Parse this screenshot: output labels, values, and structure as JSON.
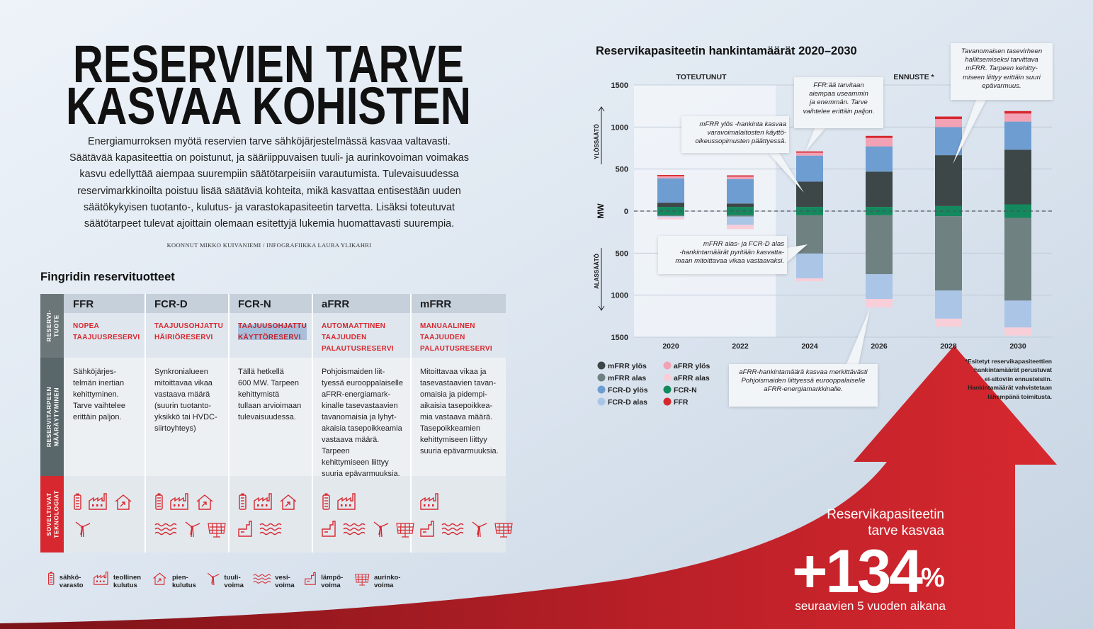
{
  "header": {
    "title": [
      "RESERVIEN TARVE",
      "KASVAA KOHISTEN"
    ],
    "intro": "Energiamurroksen myötä reservien tarve sähköjärjestelmässä kasvaa valtavasti.\nSäätävää kapasiteettia on poistunut, ja sääriippuvaisen tuuli- ja aurinkovoiman voimakas\nkasvu edellyttää aiempaa suurempiin säätötarpeisiin varautumista. Tulevaisuudessa\nreservimarkkinoilta poistuu lisää säätäviä kohteita, mikä kasvattaa entisestään uuden\nsäätökykyisen tuotanto-, kulutus- ja varastokapasiteetin tarvetta. Lisäksi toteutuvat\nsäätötarpeet tulevat ajoittain olemaan esitettyjä lukemia huomattavasti suurempia.",
    "byline": "KOONNUT MIKKO KUIVANIEMI / INFOGRAFIIKKA LAURA YLIKAHRI"
  },
  "table": {
    "title": "Fingridin reservituotteet",
    "row_labels": [
      "RESERVI-\nTUOTE",
      "RESERVITARPEEN\nMÄÄRÄYTYMINEN",
      "SOVELTUVAT\nTEKNOLOGIAT"
    ],
    "columns": [
      {
        "name": "FFR",
        "subtitle": "NOPEA\nTAAJUUSRESERVI",
        "description": "Sähköjärjes-\ntelmän inertian\nkehittyminen.\nTarve vaihtelee\nerittäin paljon."
      },
      {
        "name": "FCR-D",
        "subtitle": "TAAJUUSOHJATTU\nHÄIRIÖRESERVI",
        "description": "Synkronialueen\nmitoittavaa vikaa\nvastaava määrä\n(suurin tuotanto-\nyksikkö tai HVDC-\nsiirtoyhteys)"
      },
      {
        "name": "FCR-N",
        "subtitle": "TAAJUUSOHJATTU\nKÄYTTÖRESERVI",
        "description": "Tällä hetkellä\n600 MW. Tarpeen\nkehittymistä\ntullaan arvioimaan\ntulevaisuudessa."
      },
      {
        "name": "aFRR",
        "subtitle": "AUTOMAATTINEN\nTAAJUUDEN\nPALAUTUSRESERVI",
        "description": "Pohjoismaiden liit-\ntyessä eurooppalaiselle\naFRR-energiamark-\nkinalle tasevastaavien\ntavanomaisia ja lyhyt-\nakaisia tasepoikkeamia\nvastaava määrä. Tarpeen\nkehittymiseen liittyy\nsuuria epävarmuuksia."
      },
      {
        "name": "mFRR",
        "subtitle": "MANUAALINEN\nTAAJUUDEN\nPALAUTUSRESERVI",
        "description": "Mitoittavaa vikaa ja\ntasevastaavien tavan-\nomaisia ja pidempi-\naikaisia tasepoikkea-\nmia vastaava määrä.\nTasepoikkeamien\nkehittymiseen liittyy\nsuuria epävarmuuksia."
      }
    ]
  },
  "technology_legend": [
    [
      "sähkö-",
      "varasto"
    ],
    [
      "teollinen",
      "kulutus"
    ],
    [
      "pien-",
      "kulutus"
    ],
    [
      "tuuli-",
      "voima"
    ],
    [
      "vesi-",
      "voima"
    ],
    [
      "lämpö-",
      "voima"
    ],
    [
      "aurinko-",
      "voima"
    ]
  ],
  "chart_data": {
    "type": "bar",
    "stacked": true,
    "title": "Reservikapasiteetin hankintamäärät 2020–2030",
    "ylabel": "MW",
    "up_label": "YLÖSSÄÄTÖ",
    "down_label": "ALASSÄÄTÖ",
    "periods": [
      "TOTEUTUNUT",
      "ENNUSTE *"
    ],
    "categories": [
      "2020",
      "2022",
      "2024",
      "2026",
      "2028",
      "2030"
    ],
    "ylim": [
      -1500,
      1500
    ],
    "yticks": [
      {
        "value": -1500,
        "label": "1500"
      },
      {
        "value": -1000,
        "label": "1000"
      },
      {
        "value": -500,
        "label": "500"
      },
      0,
      500,
      1000,
      1500
    ],
    "grid": true,
    "series": [
      {
        "name": "mFRR ylös",
        "color": "#3d4747",
        "values": [
          50,
          40,
          300,
          420,
          605,
          650
        ]
      },
      {
        "name": "mFRR alas",
        "color": "#6f8181",
        "values": [
          -10,
          -15,
          -455,
          -700,
          -885,
          -985
        ]
      },
      {
        "name": "FCR-D ylös",
        "color": "#6e9dd2",
        "values": [
          290,
          290,
          310,
          300,
          335,
          335
        ]
      },
      {
        "name": "FCR-D alas",
        "color": "#abc5e7",
        "values": [
          -10,
          -100,
          -295,
          -295,
          -335,
          -320
        ]
      },
      {
        "name": "aFRR ylös",
        "color": "#f2a2b4",
        "values": [
          25,
          30,
          35,
          100,
          95,
          95
        ]
      },
      {
        "name": "aFRR alas",
        "color": "#f8ced8",
        "values": [
          -30,
          -50,
          -35,
          -100,
          -95,
          -95
        ]
      },
      {
        "name": "FCR-N",
        "color": "#13895d",
        "values": [
          50,
          50,
          50,
          50,
          60,
          80
        ]
      },
      {
        "name": "FFR",
        "color": "#d7282f",
        "values": [
          15,
          15,
          15,
          25,
          30,
          30
        ]
      }
    ],
    "annotations": [
      "FFR:ää tarvitaan\naiempaa useammin\nja enemmän. Tarve\nvaihtelee erittäin paljon.",
      "mFRR ylös -hankinta kasvaa\nvaravoimalaitosten käyttö-\noikeussopimusten päättyessä.",
      "Tavanomaisen tasevirheen\nhallitsemiseksi tarvittava\nmFRR. Tarpeen kehitty-\nmiseen liittyy erittäin suuri\nepävarmuus.",
      "mFRR alas- ja FCR-D alas\n-hankintamäärät pyritään kasvatta-\nmaan mitoittavaa vikaa vastaavaksi.",
      "aFRR-hankintamäärä kasvaa merkittävästi\nPohjoismaiden liittyessä eurooppalaiselle\naFRR-energiamarkkinalle."
    ],
    "footnote": "*Esitetyt reservikapasiteettien\nhankintamäärät perustuvat\nei-sitoviin ennusteisiin.\nHankintamäärät vahvistetaan\nlähempänä toimitusta."
  },
  "callout": {
    "lines": [
      "Reservikapasiteetin",
      "tarve kasvaa"
    ],
    "value": "+134",
    "unit": "%",
    "note": "seuraavien 5 vuoden aikana"
  }
}
